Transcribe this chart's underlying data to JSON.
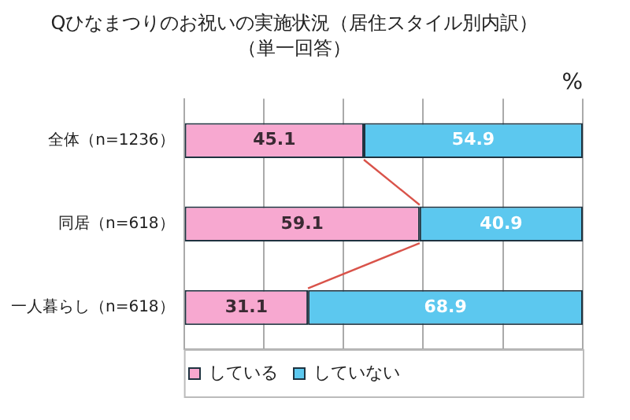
{
  "chart_data": {
    "type": "bar",
    "orientation": "horizontal",
    "stacked": true,
    "title": "Qひなまつりのお祝いの実施状況（居住スタイル別内訳）",
    "subtitle": "（単一回答）",
    "annotations": [
      "%"
    ],
    "categories": [
      "全体（n=1236）",
      "同居（n=618）",
      "一人暮らし（n=618）"
    ],
    "series": [
      {
        "name": "している",
        "color": "#f7a8d0",
        "values": [
          45.1,
          59.1,
          31.1
        ]
      },
      {
        "name": "していない",
        "color": "#5cc8ef",
        "values": [
          54.9,
          40.9,
          68.9
        ]
      }
    ],
    "xlim": [
      0,
      100
    ],
    "xticks": [
      {
        "value": 0,
        "label": null
      },
      {
        "value": 20,
        "label": null
      },
      {
        "value": 40,
        "label": null
      },
      {
        "value": 60,
        "label": null
      },
      {
        "value": 80,
        "label": null
      },
      {
        "value": 100,
        "label": null
      }
    ],
    "tick_labels": "y",
    "grid": "x",
    "legend": "bottom",
    "data_labels": true
  }
}
